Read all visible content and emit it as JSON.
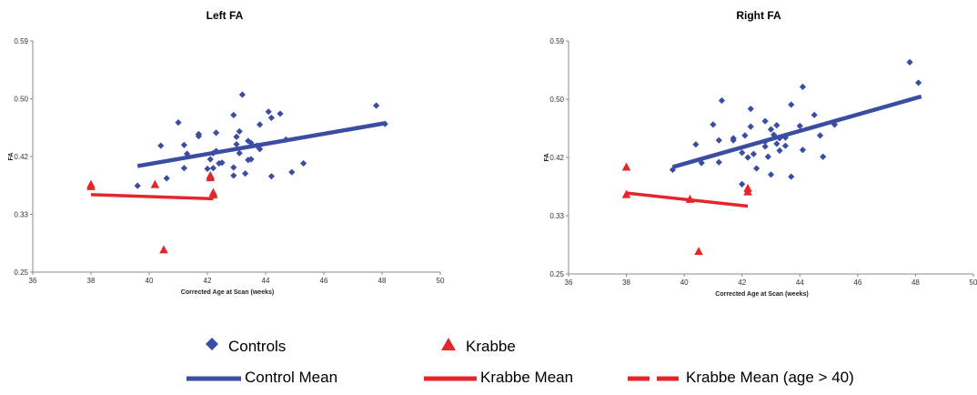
{
  "chart_data": [
    {
      "type": "scatter",
      "title": "Left FA",
      "xlabel": "Corrected Age at Scan (weeks)",
      "ylabel": "FA",
      "xlim": [
        36,
        50
      ],
      "ylim": [
        0.25,
        0.59
      ],
      "xticks": [
        "36",
        "38",
        "40",
        "42",
        "44",
        "46",
        "48",
        "50"
      ],
      "yticks": [
        "0.25",
        "0.33",
        "0.42",
        "0.50",
        "0.59"
      ],
      "series": [
        {
          "name": "Controls",
          "marker": "diamond",
          "color": "#3a4da3",
          "points": [
            [
              39.6,
              0.377
            ],
            [
              40.4,
              0.436
            ],
            [
              40.6,
              0.388
            ],
            [
              41.0,
              0.47
            ],
            [
              41.2,
              0.437
            ],
            [
              41.2,
              0.403
            ],
            [
              41.3,
              0.424
            ],
            [
              41.7,
              0.453
            ],
            [
              41.7,
              0.45
            ],
            [
              42.0,
              0.402
            ],
            [
              42.1,
              0.416
            ],
            [
              42.2,
              0.403
            ],
            [
              42.2,
              0.425
            ],
            [
              42.3,
              0.428
            ],
            [
              42.3,
              0.455
            ],
            [
              42.4,
              0.41
            ],
            [
              42.5,
              0.411
            ],
            [
              42.9,
              0.481
            ],
            [
              42.9,
              0.404
            ],
            [
              42.9,
              0.392
            ],
            [
              43.0,
              0.438
            ],
            [
              43.0,
              0.449
            ],
            [
              43.1,
              0.457
            ],
            [
              43.1,
              0.425
            ],
            [
              43.2,
              0.511
            ],
            [
              43.3,
              0.395
            ],
            [
              43.4,
              0.443
            ],
            [
              43.4,
              0.415
            ],
            [
              43.5,
              0.416
            ],
            [
              43.5,
              0.44
            ],
            [
              43.7,
              0.436
            ],
            [
              43.8,
              0.467
            ],
            [
              43.8,
              0.431
            ],
            [
              44.1,
              0.486
            ],
            [
              44.2,
              0.477
            ],
            [
              44.2,
              0.391
            ],
            [
              44.5,
              0.483
            ],
            [
              44.7,
              0.445
            ],
            [
              44.9,
              0.397
            ],
            [
              45.3,
              0.41
            ],
            [
              47.8,
              0.495
            ],
            [
              48.1,
              0.468
            ]
          ]
        },
        {
          "name": "Krabbe",
          "marker": "triangle",
          "color": "#e4262b",
          "points": [
            [
              38.0,
              0.379
            ],
            [
              38.0,
              0.376
            ],
            [
              40.2,
              0.379
            ],
            [
              40.5,
              0.283
            ],
            [
              42.1,
              0.389
            ],
            [
              42.1,
              0.392
            ],
            [
              42.2,
              0.367
            ],
            [
              42.2,
              0.364
            ]
          ]
        },
        {
          "name": "Control Mean",
          "type": "line",
          "color": "#3a4da3",
          "points": [
            [
              39.6,
              0.406
            ],
            [
              48.1,
              0.469
            ]
          ]
        },
        {
          "name": "Krabbe Mean",
          "type": "line",
          "color": "#e4262b",
          "points": [
            [
              38.0,
              0.364
            ],
            [
              42.2,
              0.358
            ]
          ]
        }
      ]
    },
    {
      "type": "scatter",
      "title": "Right FA",
      "xlabel": "Corrected Age at Scan (weeks)",
      "ylabel": "FA",
      "xlim": [
        36,
        50
      ],
      "ylim": [
        0.25,
        0.59
      ],
      "xticks": [
        "36",
        "38",
        "40",
        "42",
        "44",
        "46",
        "48",
        "50"
      ],
      "yticks": [
        "0.25",
        "0.33",
        "0.42",
        "0.50",
        "0.59"
      ],
      "series": [
        {
          "name": "Controls",
          "marker": "diamond",
          "color": "#3a4da3",
          "points": [
            [
              39.6,
              0.402
            ],
            [
              40.4,
              0.439
            ],
            [
              40.6,
              0.412
            ],
            [
              41.0,
              0.468
            ],
            [
              41.2,
              0.445
            ],
            [
              41.2,
              0.413
            ],
            [
              41.3,
              0.503
            ],
            [
              41.7,
              0.448
            ],
            [
              41.7,
              0.445
            ],
            [
              42.0,
              0.427
            ],
            [
              42.0,
              0.381
            ],
            [
              42.1,
              0.452
            ],
            [
              42.2,
              0.42
            ],
            [
              42.3,
              0.491
            ],
            [
              42.3,
              0.465
            ],
            [
              42.4,
              0.425
            ],
            [
              42.5,
              0.404
            ],
            [
              42.8,
              0.473
            ],
            [
              42.8,
              0.443
            ],
            [
              42.8,
              0.436
            ],
            [
              42.9,
              0.421
            ],
            [
              43.0,
              0.461
            ],
            [
              43.0,
              0.395
            ],
            [
              43.1,
              0.453
            ],
            [
              43.2,
              0.44
            ],
            [
              43.2,
              0.467
            ],
            [
              43.3,
              0.448
            ],
            [
              43.3,
              0.43
            ],
            [
              43.5,
              0.449
            ],
            [
              43.5,
              0.437
            ],
            [
              43.7,
              0.497
            ],
            [
              43.7,
              0.392
            ],
            [
              44.0,
              0.466
            ],
            [
              44.1,
              0.523
            ],
            [
              44.1,
              0.431
            ],
            [
              44.5,
              0.482
            ],
            [
              44.7,
              0.452
            ],
            [
              44.8,
              0.421
            ],
            [
              45.2,
              0.468
            ],
            [
              47.8,
              0.559
            ],
            [
              48.1,
              0.529
            ]
          ]
        },
        {
          "name": "Krabbe",
          "marker": "triangle",
          "color": "#e4262b",
          "points": [
            [
              38.0,
              0.406
            ],
            [
              38.0,
              0.366
            ],
            [
              40.2,
              0.359
            ],
            [
              40.5,
              0.283
            ],
            [
              42.2,
              0.375
            ],
            [
              42.2,
              0.37
            ]
          ]
        },
        {
          "name": "Control Mean",
          "type": "line",
          "color": "#3a4da3",
          "points": [
            [
              39.6,
              0.406
            ],
            [
              48.2,
              0.509
            ]
          ]
        },
        {
          "name": "Krabbe Mean",
          "type": "line",
          "color": "#e4262b",
          "points": [
            [
              38.0,
              0.368
            ],
            [
              42.2,
              0.349
            ]
          ]
        }
      ]
    }
  ],
  "legend": {
    "controls": "Controls",
    "krabbe": "Krabbe",
    "control_mean": "Control Mean",
    "krabbe_mean": "Krabbe Mean",
    "krabbe_mean_age": "Krabbe Mean (age > 40)"
  },
  "colors": {
    "control": "#3a4da3",
    "krabbe": "#e4262b",
    "axis": "#888888"
  }
}
